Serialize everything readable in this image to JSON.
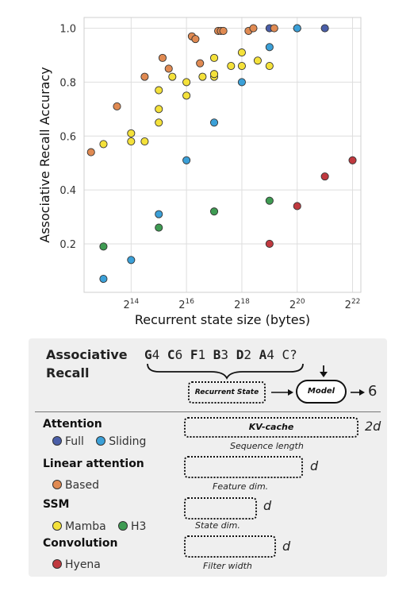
{
  "chart_data": {
    "type": "scatter",
    "xlabel": "Recurrent state size (bytes)",
    "ylabel": "Associative Recall Accuracy",
    "x_scale": "log2",
    "xlim_exp": [
      12.3,
      22.3
    ],
    "ylim": [
      0.02,
      1.04
    ],
    "x_ticks": [
      {
        "value": 16384,
        "base": "2",
        "exp": "14"
      },
      {
        "value": 65536,
        "base": "2",
        "exp": "16"
      },
      {
        "value": 262144,
        "base": "2",
        "exp": "18"
      },
      {
        "value": 1048576,
        "base": "2",
        "exp": "20"
      },
      {
        "value": 4194304,
        "base": "2",
        "exp": "22"
      }
    ],
    "y_ticks": [
      {
        "value": 0.2,
        "label": "0.2"
      },
      {
        "value": 0.4,
        "label": "0.4"
      },
      {
        "value": 0.6,
        "label": "0.6"
      },
      {
        "value": 0.8,
        "label": "0.8"
      },
      {
        "value": 1.0,
        "label": "1.0"
      }
    ],
    "grid": true,
    "series": [
      {
        "name": "Full",
        "color": "#4a5ea8",
        "points": [
          {
            "x": 524288,
            "y": 1.0
          },
          {
            "x": 1048576,
            "y": 1.0
          },
          {
            "x": 2097152,
            "y": 1.0
          }
        ]
      },
      {
        "name": "Sliding",
        "color": "#3ba0d8",
        "points": [
          {
            "x": 8192,
            "y": 0.07
          },
          {
            "x": 16384,
            "y": 0.14
          },
          {
            "x": 32768,
            "y": 0.31
          },
          {
            "x": 65536,
            "y": 0.51
          },
          {
            "x": 131072,
            "y": 0.65
          },
          {
            "x": 262144,
            "y": 0.8
          },
          {
            "x": 524288,
            "y": 0.93
          },
          {
            "x": 1048576,
            "y": 1.0
          }
        ]
      },
      {
        "name": "Based",
        "color": "#e08a52",
        "points": [
          {
            "x": 6000,
            "y": 0.54
          },
          {
            "x": 11500,
            "y": 0.71
          },
          {
            "x": 23000,
            "y": 0.82
          },
          {
            "x": 36000,
            "y": 0.89
          },
          {
            "x": 42000,
            "y": 0.85
          },
          {
            "x": 75000,
            "y": 0.97
          },
          {
            "x": 82000,
            "y": 0.96
          },
          {
            "x": 92000,
            "y": 0.87
          },
          {
            "x": 145000,
            "y": 0.99
          },
          {
            "x": 155000,
            "y": 0.99
          },
          {
            "x": 165000,
            "y": 0.99
          },
          {
            "x": 310000,
            "y": 0.99
          },
          {
            "x": 350000,
            "y": 1.0
          },
          {
            "x": 590000,
            "y": 1.0
          }
        ]
      },
      {
        "name": "Mamba",
        "color": "#f4e13a",
        "points": [
          {
            "x": 8200,
            "y": 0.57
          },
          {
            "x": 16384,
            "y": 0.61
          },
          {
            "x": 16384,
            "y": 0.58
          },
          {
            "x": 23000,
            "y": 0.58
          },
          {
            "x": 32768,
            "y": 0.65
          },
          {
            "x": 32768,
            "y": 0.7
          },
          {
            "x": 32768,
            "y": 0.77
          },
          {
            "x": 46000,
            "y": 0.82
          },
          {
            "x": 65536,
            "y": 0.75
          },
          {
            "x": 65536,
            "y": 0.8
          },
          {
            "x": 98000,
            "y": 0.82
          },
          {
            "x": 131072,
            "y": 0.82
          },
          {
            "x": 131072,
            "y": 0.83
          },
          {
            "x": 131072,
            "y": 0.89
          },
          {
            "x": 200000,
            "y": 0.86
          },
          {
            "x": 262144,
            "y": 0.86
          },
          {
            "x": 262144,
            "y": 0.91
          },
          {
            "x": 390000,
            "y": 0.88
          },
          {
            "x": 524288,
            "y": 0.86
          }
        ]
      },
      {
        "name": "H3",
        "color": "#3e9b52",
        "points": [
          {
            "x": 8192,
            "y": 0.19
          },
          {
            "x": 32768,
            "y": 0.26
          },
          {
            "x": 131072,
            "y": 0.32
          },
          {
            "x": 524288,
            "y": 0.36
          }
        ]
      },
      {
        "name": "Hyena",
        "color": "#c0393f",
        "points": [
          {
            "x": 524288,
            "y": 0.2
          },
          {
            "x": 1048576,
            "y": 0.34
          },
          {
            "x": 2097152,
            "y": 0.45
          },
          {
            "x": 4194304,
            "y": 0.51
          }
        ]
      }
    ]
  },
  "diagram": {
    "title_line1": "Associative",
    "title_line2": "Recall",
    "sequence": [
      {
        "key": "G",
        "val": "4"
      },
      {
        "key": "C",
        "val": "6"
      },
      {
        "key": "F",
        "val": "1"
      },
      {
        "key": "B",
        "val": "3"
      },
      {
        "key": "D",
        "val": "2"
      },
      {
        "key": "A",
        "val": "4"
      }
    ],
    "query": "C?",
    "recurrent_state": "Recurrent State",
    "model": "Model",
    "output": "6"
  },
  "legend": {
    "categories": [
      {
        "name": "Attention",
        "items": [
          {
            "label": "Full",
            "color": "#4a5ea8"
          },
          {
            "label": "Sliding",
            "color": "#3ba0d8"
          }
        ],
        "state_label": "KV-cache",
        "caption": "Sequence length",
        "dim": "2d"
      },
      {
        "name": "Linear attention",
        "items": [
          {
            "label": "Based",
            "color": "#e08a52"
          }
        ],
        "state_label": "",
        "caption": "Feature dim.",
        "dim": "d"
      },
      {
        "name": "SSM",
        "items": [
          {
            "label": "Mamba",
            "color": "#f4e13a"
          },
          {
            "label": "H3",
            "color": "#3e9b52"
          }
        ],
        "state_label": "",
        "caption": "State dim.",
        "dim": "d"
      },
      {
        "name": "Convolution",
        "items": [
          {
            "label": "Hyena",
            "color": "#c0393f"
          }
        ],
        "state_label": "",
        "caption": "Filter width",
        "dim": "d"
      }
    ]
  }
}
